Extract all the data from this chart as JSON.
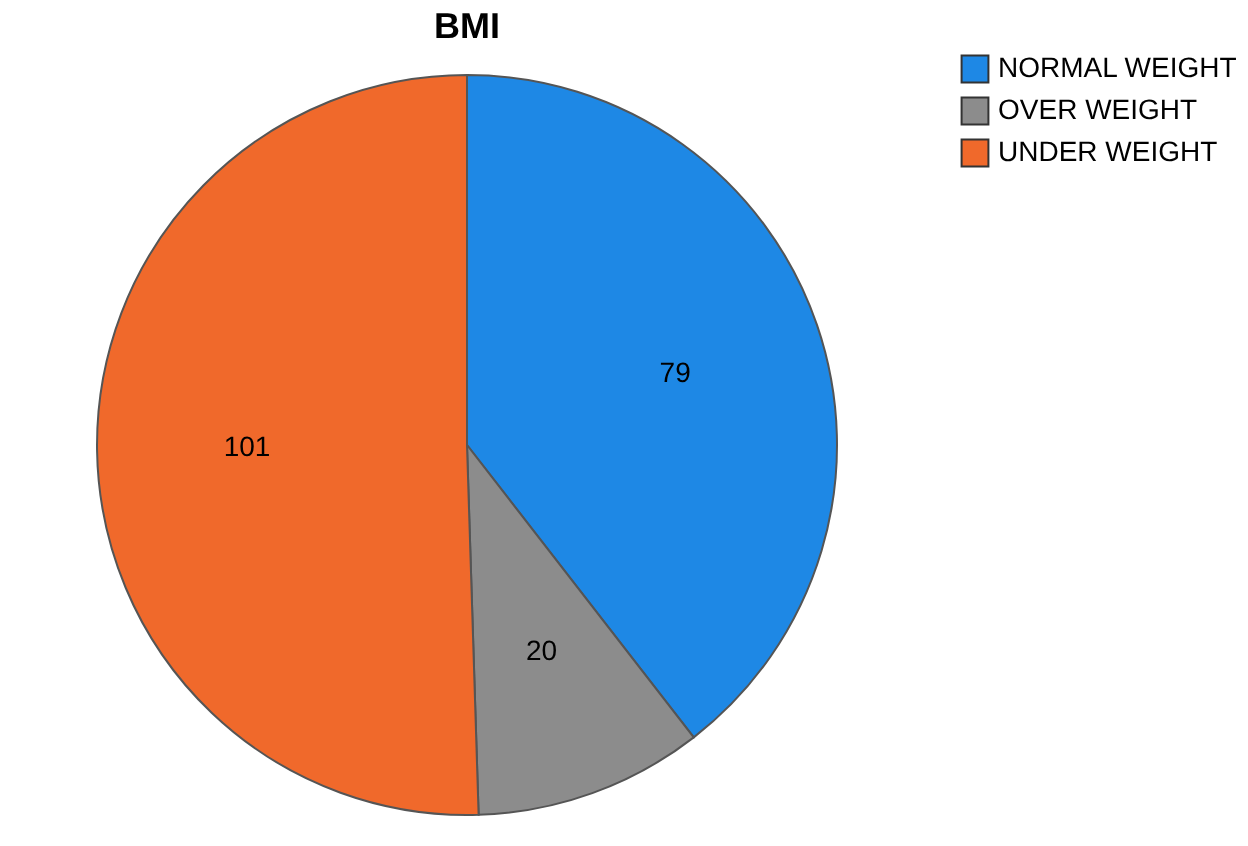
{
  "chart_data": {
    "type": "pie",
    "title": "BMI",
    "categories": [
      "NORMAL WEIGHT",
      "OVER WEIGHT",
      "UNDER WEIGHT"
    ],
    "values": [
      79,
      20,
      101
    ],
    "colors": [
      "#1e88e5",
      "#8c8c8c",
      "#f0692b"
    ],
    "data_labels": true,
    "legend": "right"
  }
}
